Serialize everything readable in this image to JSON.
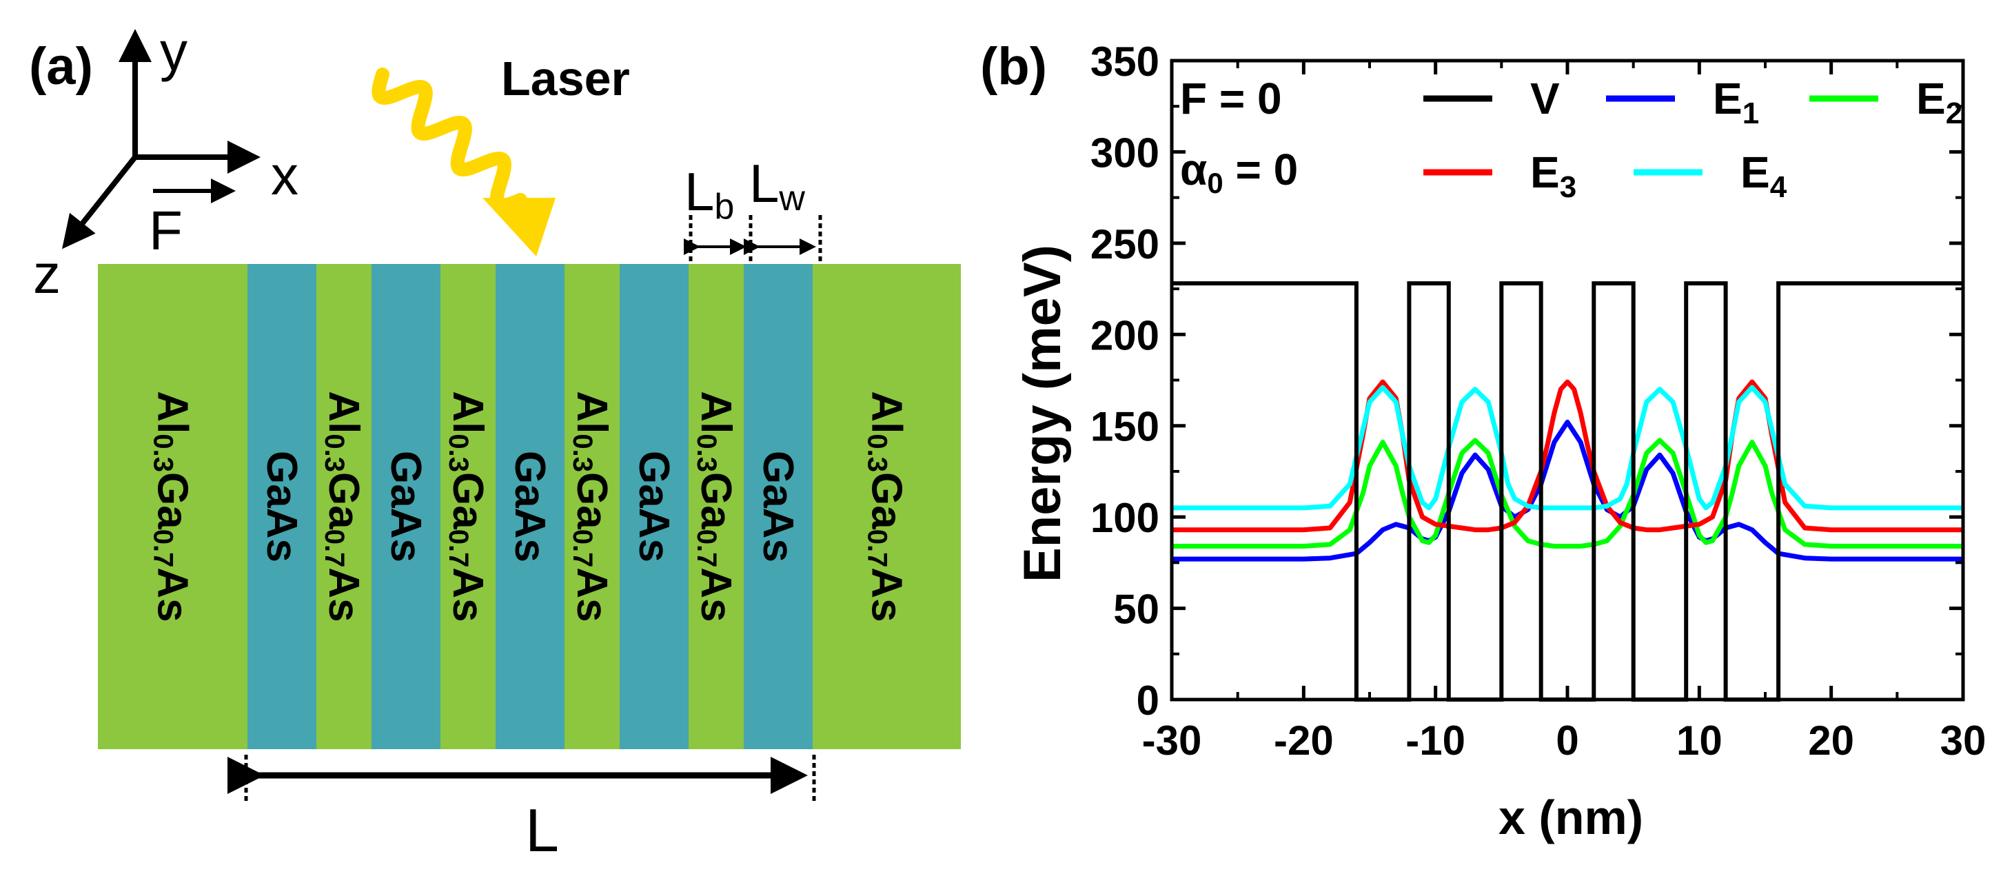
{
  "panel_a": {
    "label": "(a)",
    "axis_y": "y",
    "axis_x": "x",
    "axis_z": "z",
    "field_label": "F",
    "laser_label": "Laser",
    "lb_main": "L",
    "lb_sub": "b",
    "lw_main": "L",
    "lw_sub": "w",
    "total_length_label": "L",
    "layers": [
      {
        "kind": "barrier",
        "parts": [
          [
            "Al",
            "n"
          ],
          [
            "0.3",
            "s"
          ],
          [
            "Ga",
            "n"
          ],
          [
            "0.7",
            "s"
          ],
          [
            "As",
            "n"
          ]
        ]
      },
      {
        "kind": "well",
        "parts": [
          [
            "GaAs",
            "n"
          ]
        ]
      },
      {
        "kind": "barrier",
        "parts": [
          [
            "Al",
            "n"
          ],
          [
            "0.3",
            "s"
          ],
          [
            "Ga",
            "n"
          ],
          [
            "0.7",
            "s"
          ],
          [
            "As",
            "n"
          ]
        ]
      },
      {
        "kind": "well",
        "parts": [
          [
            "GaAs",
            "n"
          ]
        ]
      },
      {
        "kind": "barrier",
        "parts": [
          [
            "Al",
            "n"
          ],
          [
            "0.3",
            "s"
          ],
          [
            "Ga",
            "n"
          ],
          [
            "0.7",
            "s"
          ],
          [
            "As",
            "n"
          ]
        ]
      },
      {
        "kind": "well",
        "parts": [
          [
            "GaAs",
            "n"
          ]
        ]
      },
      {
        "kind": "barrier",
        "parts": [
          [
            "Al",
            "n"
          ],
          [
            "0.3",
            "s"
          ],
          [
            "Ga",
            "n"
          ],
          [
            "0.7",
            "s"
          ],
          [
            "As",
            "n"
          ]
        ]
      },
      {
        "kind": "well",
        "parts": [
          [
            "GaAs",
            "n"
          ]
        ]
      },
      {
        "kind": "barrier",
        "parts": [
          [
            "Al",
            "n"
          ],
          [
            "0.3",
            "s"
          ],
          [
            "Ga",
            "n"
          ],
          [
            "0.7",
            "s"
          ],
          [
            "As",
            "n"
          ]
        ]
      },
      {
        "kind": "well",
        "parts": [
          [
            "GaAs",
            "n"
          ]
        ]
      },
      {
        "kind": "barrier",
        "parts": [
          [
            "Al",
            "n"
          ],
          [
            "0.3",
            "s"
          ],
          [
            "Ga",
            "n"
          ],
          [
            "0.7",
            "s"
          ],
          [
            "As",
            "n"
          ]
        ]
      }
    ],
    "colors": {
      "barrier": "#8dc63f",
      "well": "#45a5b0",
      "laser": "#ffd700"
    }
  },
  "panel_b": {
    "label": "(b)",
    "annotation_field": "F  = 0",
    "annotation_alpha_symbol": "α",
    "annotation_alpha_sub": "0",
    "annotation_alpha_value": " = 0"
  },
  "chart_data": {
    "type": "line",
    "xlabel": "x (nm)",
    "ylabel": "Energy (meV)",
    "xlim": [
      -30,
      30
    ],
    "ylim": [
      0,
      350
    ],
    "xticks": [
      -30,
      -20,
      -10,
      0,
      10,
      20,
      30
    ],
    "yticks": [
      0,
      50,
      100,
      150,
      200,
      250,
      300,
      350
    ],
    "grid": false,
    "legend_position": "top-right",
    "potential": {
      "name": "V",
      "color": "#000000",
      "barrier_height": 228,
      "x": [
        -30,
        -16,
        -16,
        -12,
        -12,
        -9,
        -9,
        -5,
        -5,
        -2,
        -2,
        2,
        2,
        5,
        5,
        9,
        9,
        12,
        12,
        16,
        16,
        30
      ],
      "y": [
        228,
        228,
        0,
        0,
        228,
        228,
        0,
        0,
        228,
        228,
        0,
        0,
        228,
        228,
        0,
        0,
        228,
        228,
        0,
        0,
        228,
        228
      ]
    },
    "series": [
      {
        "name_main": "E",
        "name_sub": "1",
        "color": "#0000ff",
        "x": [
          -30,
          -20,
          -18,
          -16,
          -15,
          -14,
          -13,
          -12,
          -11,
          -10.5,
          -10,
          -9,
          -8,
          -7,
          -6,
          -5,
          -4,
          -3,
          -2,
          -1,
          0,
          1,
          2,
          3,
          4,
          5,
          6,
          7,
          8,
          9,
          10,
          10.5,
          11,
          12,
          13,
          14,
          15,
          16,
          18,
          20,
          30
        ],
        "y": [
          77,
          77,
          77.5,
          80,
          86,
          93,
          96,
          94,
          88,
          87,
          89,
          103,
          124,
          134,
          126,
          106,
          100,
          104,
          118,
          141,
          152,
          141,
          118,
          104,
          100,
          106,
          126,
          134,
          124,
          103,
          89,
          87,
          88,
          94,
          96,
          93,
          86,
          80,
          77.5,
          77,
          77
        ]
      },
      {
        "name_main": "E",
        "name_sub": "2",
        "color": "#00ff00",
        "x": [
          -30,
          -20,
          -18,
          -16.5,
          -15.5,
          -15,
          -14,
          -13,
          -12.5,
          -12,
          -11,
          -10.5,
          -10,
          -9,
          -8,
          -7,
          -6,
          -5,
          -4,
          -3,
          -2,
          -1,
          0,
          1,
          2,
          3,
          4,
          5,
          6,
          7,
          8,
          9,
          10,
          10.5,
          11,
          12,
          12.5,
          13,
          14,
          15,
          15.5,
          16.5,
          18,
          20,
          30
        ],
        "y": [
          84,
          84,
          85,
          93,
          113,
          128,
          141,
          128,
          113,
          100,
          87,
          86,
          90,
          113,
          135,
          142,
          135,
          112,
          95,
          87,
          85,
          84,
          84,
          84,
          85,
          87,
          95,
          112,
          135,
          142,
          135,
          113,
          90,
          86,
          87,
          100,
          113,
          128,
          141,
          128,
          113,
          93,
          85,
          84,
          84
        ]
      },
      {
        "name_main": "E",
        "name_sub": "3",
        "color": "#ff0000",
        "x": [
          -30,
          -20,
          -18,
          -16.5,
          -15.5,
          -15,
          -14,
          -13,
          -12.5,
          -12,
          -11,
          -10,
          -9,
          -8,
          -7,
          -6,
          -5,
          -4,
          -3,
          -2,
          -1.5,
          -1,
          -0.5,
          0,
          0.5,
          1,
          1.5,
          2,
          3,
          4,
          5,
          6,
          7,
          8,
          9,
          10,
          11,
          12,
          12.5,
          13,
          14,
          15,
          15.5,
          16.5,
          18,
          20,
          30
        ],
        "y": [
          93,
          93,
          94,
          108,
          145,
          165,
          174,
          165,
          145,
          120,
          100,
          96,
          95,
          94,
          93,
          93,
          94,
          97,
          106,
          125,
          140,
          157,
          170,
          174,
          170,
          157,
          140,
          125,
          106,
          97,
          94,
          93,
          93,
          94,
          95,
          96,
          100,
          120,
          145,
          165,
          174,
          165,
          145,
          108,
          94,
          93,
          93
        ]
      },
      {
        "name_main": "E",
        "name_sub": "4",
        "color": "#00ffff",
        "x": [
          -30,
          -20,
          -18,
          -16.5,
          -15.5,
          -15,
          -14,
          -13,
          -12.5,
          -12,
          -11,
          -10.5,
          -10,
          -9,
          -8,
          -7,
          -6,
          -5,
          -4.5,
          -4,
          -3,
          -2,
          -1,
          0,
          1,
          2,
          3,
          4,
          4.5,
          5,
          6,
          7,
          8,
          9,
          10,
          10.5,
          11,
          12,
          12.5,
          13,
          14,
          15,
          15.5,
          16.5,
          18,
          20,
          30
        ],
        "y": [
          105,
          105,
          106,
          118,
          148,
          163,
          171,
          163,
          145,
          128,
          108,
          105,
          110,
          138,
          163,
          170,
          163,
          135,
          118,
          110,
          106,
          105,
          105,
          105,
          105,
          105,
          106,
          110,
          118,
          135,
          163,
          170,
          163,
          138,
          110,
          105,
          108,
          128,
          145,
          163,
          171,
          163,
          148,
          118,
          106,
          105,
          105
        ]
      }
    ]
  }
}
